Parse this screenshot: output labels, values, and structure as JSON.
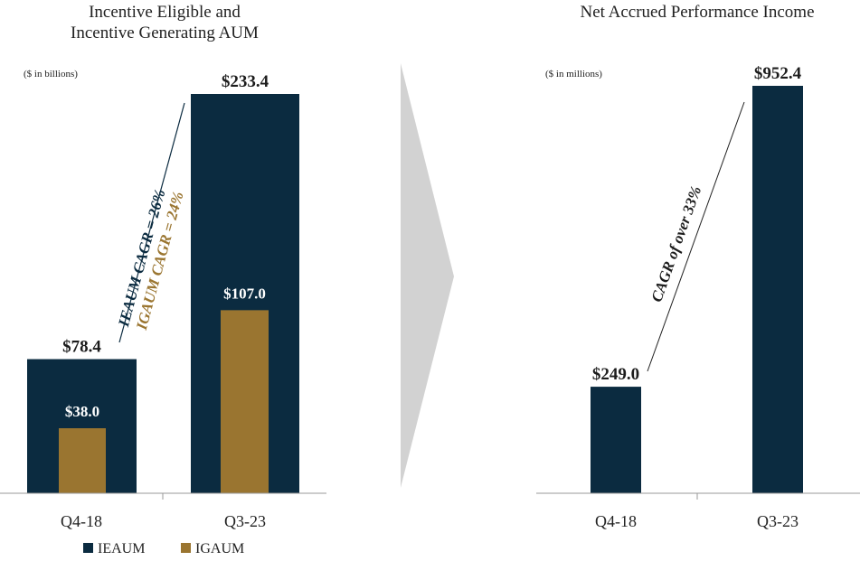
{
  "colors": {
    "ieaum": "#0b2b40",
    "igaum": "#9a7530",
    "arrow": "#d2d2d2",
    "axis": "#9a9a9a",
    "cagr_line": "#222222"
  },
  "chart_data": [
    {
      "type": "bar",
      "title": [
        "Incentive Eligible and",
        "Incentive Generating AUM"
      ],
      "unit_note": "($ in billions)",
      "categories": [
        "Q4-18",
        "Q3-23"
      ],
      "ylim": [
        0,
        240
      ],
      "series": [
        {
          "name": "IEAUM",
          "values": [
            78.4,
            233.4
          ],
          "labels": [
            "$78.4",
            "$233.4"
          ]
        },
        {
          "name": "IGAUM",
          "values": [
            38.0,
            107.0
          ],
          "labels": [
            "$38.0",
            "$107.0"
          ]
        }
      ],
      "annotations": [
        "IEAUM CAGR = 26%",
        "IGAUM CAGR = 24%"
      ],
      "legend": [
        "IEAUM",
        "IGAUM"
      ]
    },
    {
      "type": "bar",
      "title": [
        "Net Accrued Performance Income"
      ],
      "unit_note": "($ in millions)",
      "categories": [
        "Q4-18",
        "Q3-23"
      ],
      "ylim": [
        0,
        980
      ],
      "series": [
        {
          "name": "Net Accrued Performance Income",
          "values": [
            249.0,
            952.4
          ],
          "labels": [
            "$249.0",
            "$952.4"
          ]
        }
      ],
      "annotations": [
        "CAGR of over 33%"
      ]
    }
  ]
}
